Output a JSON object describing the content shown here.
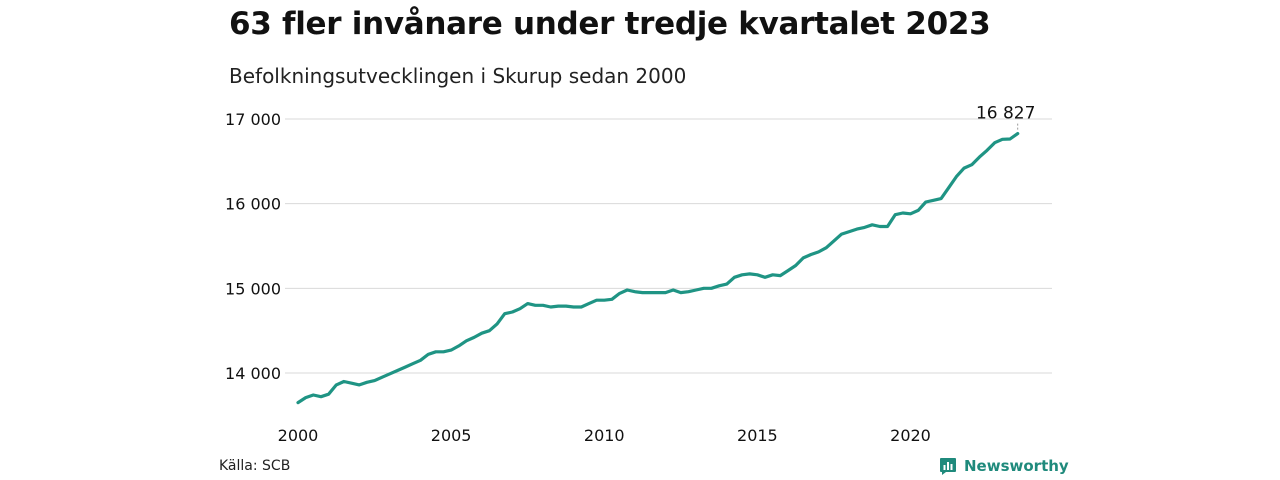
{
  "title": "63 fler invånare under tredje kvartalet 2023",
  "subtitle": "Befolkningsutvecklingen i Skurup sedan 2000",
  "source": "Källa: SCB",
  "brand": {
    "name": "Newsworthy",
    "icon": "bar-chart-badge-icon",
    "color": "#1f8a7c"
  },
  "chart_data": {
    "type": "line",
    "ylim": [
      13500,
      17100
    ],
    "xlim": [
      2000,
      2024
    ],
    "yticks": [
      14000,
      15000,
      16000,
      17000
    ],
    "ytick_labels": [
      "14 000",
      "15 000",
      "16 000",
      "17 000"
    ],
    "xticks": [
      2000,
      2005,
      2010,
      2015,
      2020
    ],
    "xtick_labels": [
      "2000",
      "2005",
      "2010",
      "2015",
      "2020"
    ],
    "grid": true,
    "line_color": "#1f9484",
    "end_label": "16 827",
    "series": [
      {
        "x": [
          2000.0,
          2000.25,
          2000.5,
          2000.75,
          2001.0,
          2001.25,
          2001.5,
          2001.75,
          2002.0,
          2002.25,
          2002.5,
          2002.75,
          2003.0,
          2003.25,
          2003.5,
          2003.75,
          2004.0,
          2004.25,
          2004.5,
          2004.75,
          2005.0,
          2005.25,
          2005.5,
          2005.75,
          2006.0,
          2006.25,
          2006.5,
          2006.75,
          2007.0,
          2007.25,
          2007.5,
          2007.75,
          2008.0,
          2008.25,
          2008.5,
          2008.75,
          2009.0,
          2009.25,
          2009.5,
          2009.75,
          2010.0,
          2010.25,
          2010.5,
          2010.75,
          2011.0,
          2011.25,
          2011.5,
          2011.75,
          2012.0,
          2012.25,
          2012.5,
          2012.75,
          2013.0,
          2013.25,
          2013.5,
          2013.75,
          2014.0,
          2014.25,
          2014.5,
          2014.75,
          2015.0,
          2015.25,
          2015.5,
          2015.75,
          2016.0,
          2016.25,
          2016.5,
          2016.75,
          2017.0,
          2017.25,
          2017.5,
          2017.75,
          2018.0,
          2018.25,
          2018.5,
          2018.75,
          2019.0,
          2019.25,
          2019.5,
          2019.75,
          2020.0,
          2020.25,
          2020.5,
          2020.75,
          2021.0,
          2021.25,
          2021.5,
          2021.75,
          2022.0,
          2022.25,
          2022.5,
          2022.75,
          2023.0,
          2023.25,
          2023.5
        ],
        "y": [
          13650,
          13710,
          13740,
          13720,
          13750,
          13860,
          13900,
          13880,
          13860,
          13890,
          13910,
          13950,
          13990,
          14030,
          14070,
          14110,
          14150,
          14220,
          14250,
          14250,
          14270,
          14320,
          14380,
          14420,
          14470,
          14500,
          14580,
          14700,
          14720,
          14760,
          14820,
          14800,
          14800,
          14780,
          14790,
          14790,
          14780,
          14780,
          14820,
          14860,
          14860,
          14870,
          14940,
          14980,
          14960,
          14950,
          14950,
          14950,
          14950,
          14980,
          14950,
          14960,
          14980,
          15000,
          15000,
          15030,
          15050,
          15130,
          15160,
          15170,
          15160,
          15130,
          15160,
          15150,
          15210,
          15270,
          15360,
          15400,
          15430,
          15480,
          15560,
          15640,
          15670,
          15700,
          15720,
          15750,
          15730,
          15730,
          15870,
          15890,
          15880,
          15920,
          16020,
          16040,
          16060,
          16190,
          16320,
          16420,
          16460,
          16550,
          16630,
          16720,
          16760,
          16764,
          16827
        ]
      }
    ]
  }
}
